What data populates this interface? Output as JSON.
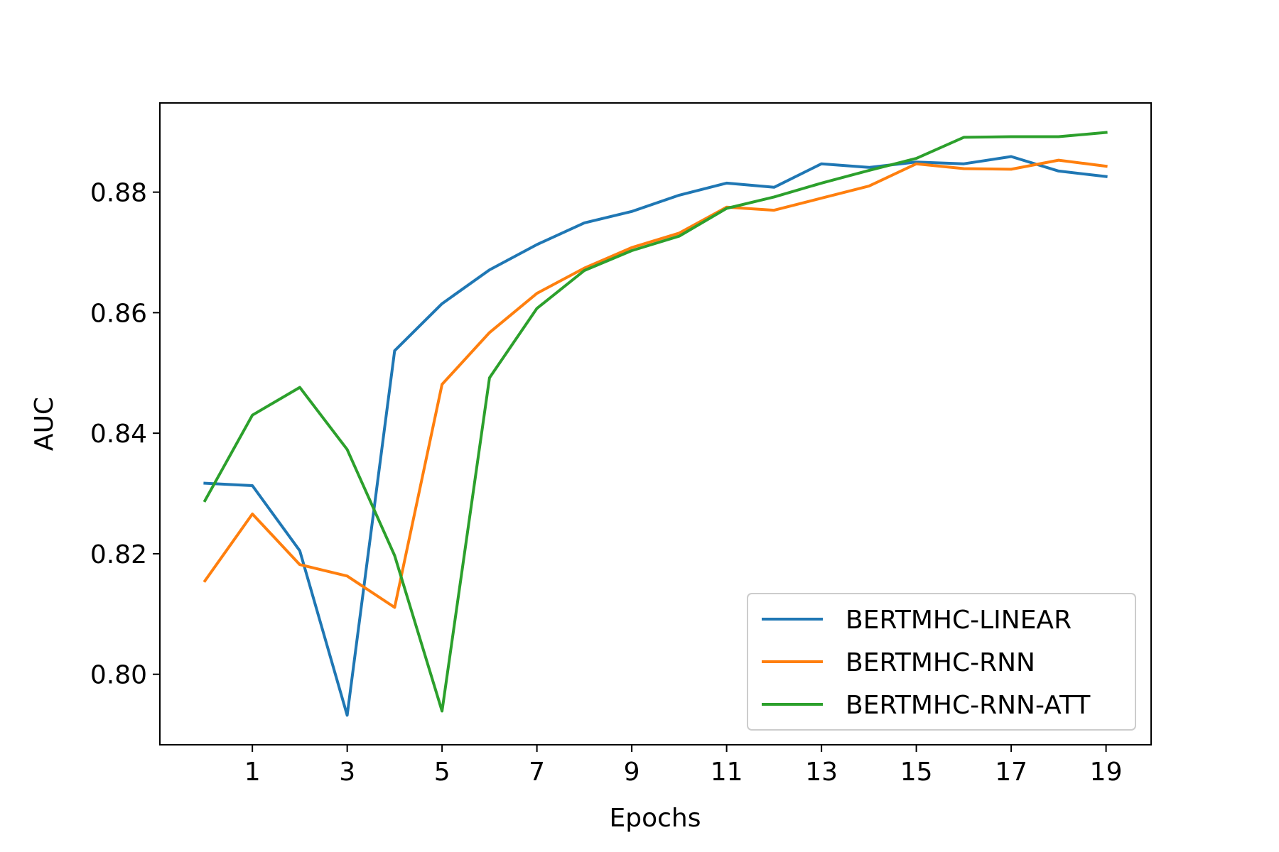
{
  "chart_data": {
    "type": "line",
    "title": "",
    "xlabel": "Epochs",
    "ylabel": "AUC",
    "x": [
      0,
      1,
      2,
      3,
      4,
      5,
      6,
      7,
      8,
      9,
      10,
      11,
      12,
      13,
      14,
      15,
      16,
      17,
      18,
      19
    ],
    "x_ticks": [
      1,
      3,
      5,
      7,
      9,
      11,
      13,
      15,
      17,
      19
    ],
    "y_ticks": [
      0.8,
      0.82,
      0.84,
      0.86,
      0.88
    ],
    "y_tick_labels": [
      "0.80",
      "0.82",
      "0.84",
      "0.86",
      "0.88"
    ],
    "xlim": [
      -0.95,
      19.95
    ],
    "ylim": [
      0.7883,
      0.8948
    ],
    "grid": false,
    "legend_position": "lower-right",
    "series": [
      {
        "name": "BERTMHC-LINEAR",
        "color": "#1f77b4",
        "values": [
          0.8317,
          0.8313,
          0.8205,
          0.7932,
          0.8537,
          0.8615,
          0.8671,
          0.8713,
          0.8749,
          0.8768,
          0.8795,
          0.8815,
          0.8808,
          0.8847,
          0.8841,
          0.885,
          0.8847,
          0.8859,
          0.8835,
          0.8826
        ]
      },
      {
        "name": "BERTMHC-RNN",
        "color": "#ff7f0e",
        "values": [
          0.8155,
          0.8266,
          0.8182,
          0.8163,
          0.8111,
          0.8481,
          0.8567,
          0.8632,
          0.8674,
          0.8708,
          0.8732,
          0.8775,
          0.877,
          0.879,
          0.881,
          0.8847,
          0.8839,
          0.8838,
          0.8853,
          0.8843
        ]
      },
      {
        "name": "BERTMHC-RNN-ATT",
        "color": "#2ca02c",
        "values": [
          0.8288,
          0.843,
          0.8476,
          0.8373,
          0.8197,
          0.7939,
          0.8492,
          0.8607,
          0.867,
          0.8703,
          0.8727,
          0.8773,
          0.8792,
          0.8815,
          0.8836,
          0.8856,
          0.8891,
          0.8892,
          0.8892,
          0.8899
        ]
      }
    ]
  }
}
